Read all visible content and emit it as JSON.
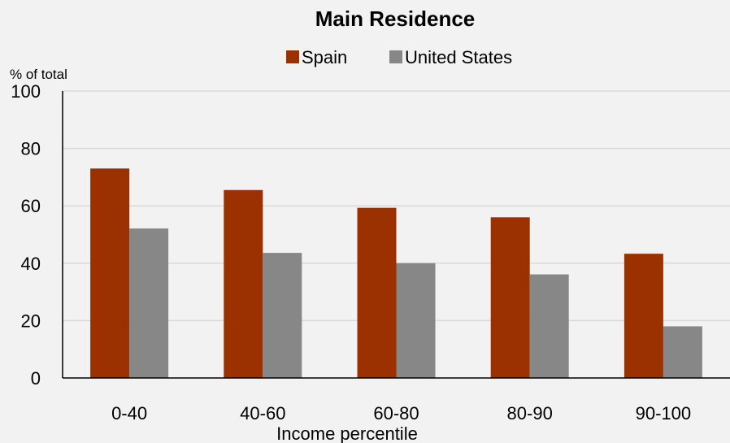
{
  "chart_data": {
    "type": "bar",
    "title": "Main Residence",
    "ylabel": "% of total",
    "xlabel": "Income percentile",
    "categories": [
      "0-40",
      "40-60",
      "60-80",
      "80-90",
      "90-100"
    ],
    "series": [
      {
        "name": "Spain",
        "color": "#9c3100",
        "values": [
          73,
          65.5,
          59.3,
          56,
          43.3
        ]
      },
      {
        "name": "United States",
        "color": "#878787",
        "values": [
          52.1,
          43.6,
          40,
          36.1,
          18
        ]
      }
    ],
    "ylim": [
      0,
      100
    ],
    "yticks": [
      0,
      20,
      40,
      60,
      80,
      100
    ],
    "grid": true,
    "legend_position": "top-center"
  }
}
